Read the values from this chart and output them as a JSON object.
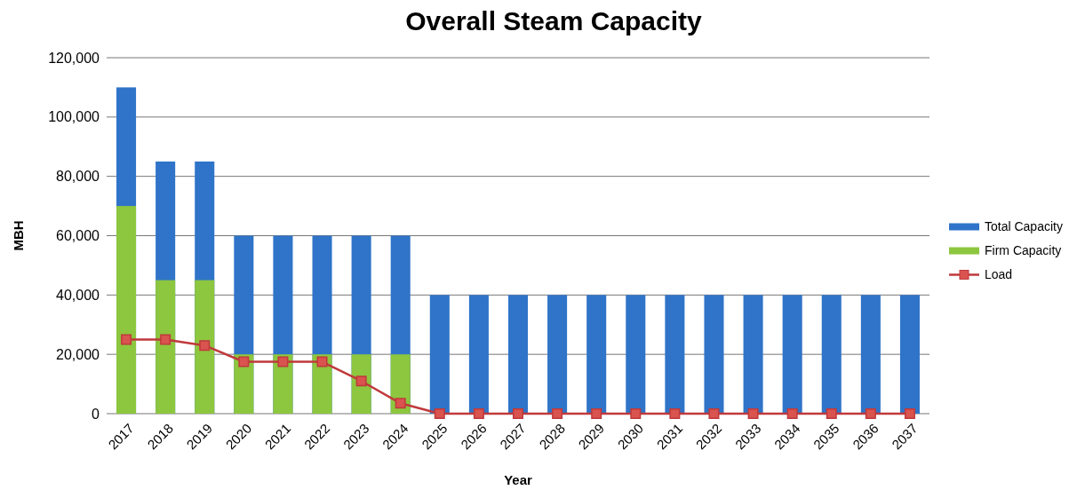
{
  "chart_data": {
    "type": "bar",
    "title": "Overall Steam Capacity",
    "xlabel": "Year",
    "ylabel": "MBH",
    "categories": [
      "2017",
      "2018",
      "2019",
      "2020",
      "2021",
      "2022",
      "2023",
      "2024",
      "2025",
      "2026",
      "2027",
      "2028",
      "2029",
      "2030",
      "2031",
      "2032",
      "2033",
      "2034",
      "2035",
      "2036",
      "2037"
    ],
    "series": [
      {
        "name": "Total Capacity",
        "color": "#2f74c8",
        "values": [
          110000,
          85000,
          85000,
          60000,
          60000,
          60000,
          60000,
          60000,
          40000,
          40000,
          40000,
          40000,
          40000,
          40000,
          40000,
          40000,
          40000,
          40000,
          40000,
          40000,
          40000
        ]
      },
      {
        "name": "Firm Capacity",
        "color": "#8dc63f",
        "values": [
          70000,
          45000,
          45000,
          20000,
          20000,
          20000,
          20000,
          20000,
          0,
          0,
          0,
          0,
          0,
          0,
          0,
          0,
          0,
          0,
          0,
          0,
          0
        ]
      },
      {
        "name": "Load",
        "type": "line",
        "color": "#c0393b",
        "marker": "square",
        "values": [
          25000,
          25000,
          23000,
          17500,
          17500,
          17500,
          11000,
          3500,
          0,
          0,
          0,
          0,
          0,
          0,
          0,
          0,
          0,
          0,
          0,
          0,
          0
        ]
      }
    ],
    "ylim": [
      0,
      120000
    ],
    "yticks": [
      {
        "value": 0,
        "label": "0"
      },
      {
        "value": 20000,
        "label": "20,000"
      },
      {
        "value": 40000,
        "label": "40,000"
      },
      {
        "value": 60000,
        "label": "60,000"
      },
      {
        "value": 80000,
        "label": "80,000"
      },
      {
        "value": 100000,
        "label": "100,000"
      },
      {
        "value": 120000,
        "label": "120,000"
      }
    ],
    "grid": "y",
    "legend": "right"
  }
}
